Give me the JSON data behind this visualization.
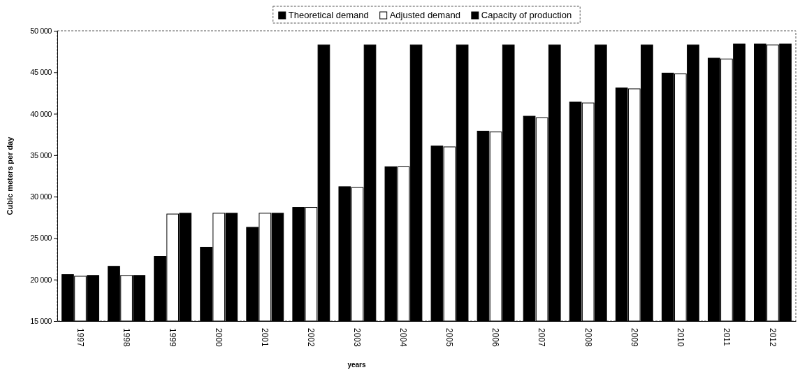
{
  "chart_data": {
    "type": "bar",
    "xlabel": "years",
    "ylabel": "Cubic meters per day",
    "categories": [
      "1997",
      "1998",
      "1999",
      "2000",
      "2001",
      "2002",
      "2003",
      "2004",
      "2005",
      "2006",
      "2007",
      "2008",
      "2009",
      "2010",
      "2011",
      "2012"
    ],
    "series": [
      {
        "name": "Theoretical demand",
        "color": "#000000",
        "values": [
          20600,
          21600,
          22800,
          23900,
          26300,
          28700,
          31200,
          33600,
          36100,
          37900,
          39700,
          41400,
          43100,
          44900,
          46700,
          48400
        ]
      },
      {
        "name": "Adjusted demand",
        "color": "#ffffff",
        "values": [
          20400,
          20500,
          27900,
          28000,
          28000,
          28700,
          31100,
          33600,
          36000,
          37800,
          39500,
          41300,
          43000,
          44800,
          46600,
          48300
        ]
      },
      {
        "name": "Capacity of production",
        "color": "#000000",
        "values": [
          20500,
          20500,
          28000,
          28000,
          28000,
          48300,
          48300,
          48300,
          48300,
          48300,
          48300,
          48300,
          48300,
          48300,
          48400,
          48400
        ]
      }
    ],
    "ylim": [
      15000,
      50000
    ],
    "yticks": [
      {
        "value": 15000,
        "label": "15 000"
      },
      {
        "value": 20000,
        "label": "20 000"
      },
      {
        "value": 25000,
        "label": "25 000"
      },
      {
        "value": 30000,
        "label": "30 000"
      },
      {
        "value": 35000,
        "label": "35 000"
      },
      {
        "value": 40000,
        "label": "40 000"
      },
      {
        "value": 45000,
        "label": "45 000"
      },
      {
        "value": 50000,
        "label": "50 000"
      }
    ],
    "legend": "top"
  }
}
